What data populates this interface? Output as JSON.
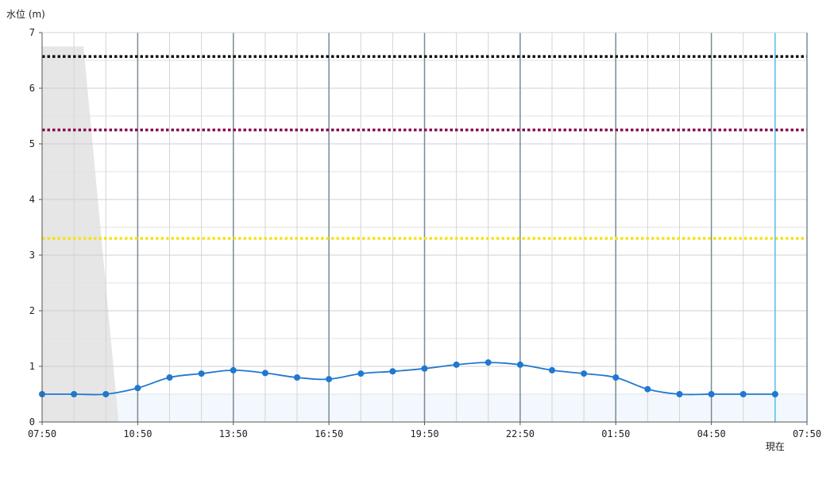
{
  "chart_data": {
    "type": "line",
    "ylabel": "水位 (m)",
    "ylim": [
      0,
      7
    ],
    "y_ticks": [
      "0",
      "1",
      "2",
      "3",
      "4",
      "5",
      "6",
      "7"
    ],
    "x_tick_labels": [
      "07:50",
      "10:50",
      "13:50",
      "16:50",
      "19:50",
      "22:50",
      "01:50",
      "04:50",
      "07:50"
    ],
    "x_hours_range": [
      0,
      24
    ],
    "grid": true,
    "now_label": "現在",
    "now_hour": 23,
    "series": [
      {
        "color": "#1f78d1",
        "x": [
          0,
          1,
          2,
          3,
          4,
          5,
          6,
          7,
          8,
          9,
          10,
          11,
          12,
          13,
          14,
          15,
          16,
          17,
          18,
          19,
          20,
          21,
          22,
          23
        ],
        "values": [
          0.5,
          0.5,
          0.5,
          0.61,
          0.8,
          0.87,
          0.93,
          0.88,
          0.8,
          0.77,
          0.87,
          0.91,
          0.96,
          1.03,
          1.07,
          1.03,
          0.93,
          0.87,
          0.8,
          0.59,
          0.5,
          0.5,
          0.5,
          0.5
        ]
      }
    ],
    "threshold_lines": [
      {
        "value": 6.57,
        "color": "#111111"
      },
      {
        "value": 5.25,
        "color": "#8b0a50"
      },
      {
        "value": 3.3,
        "color": "#f2e31b"
      }
    ],
    "shaded_area": {
      "color": "#e6e6e6",
      "x": [
        0,
        1.3,
        2.4
      ],
      "y": [
        6.75,
        6.75,
        0
      ]
    },
    "base_band": {
      "value": 0.5,
      "color": "#f2f8fd"
    }
  }
}
